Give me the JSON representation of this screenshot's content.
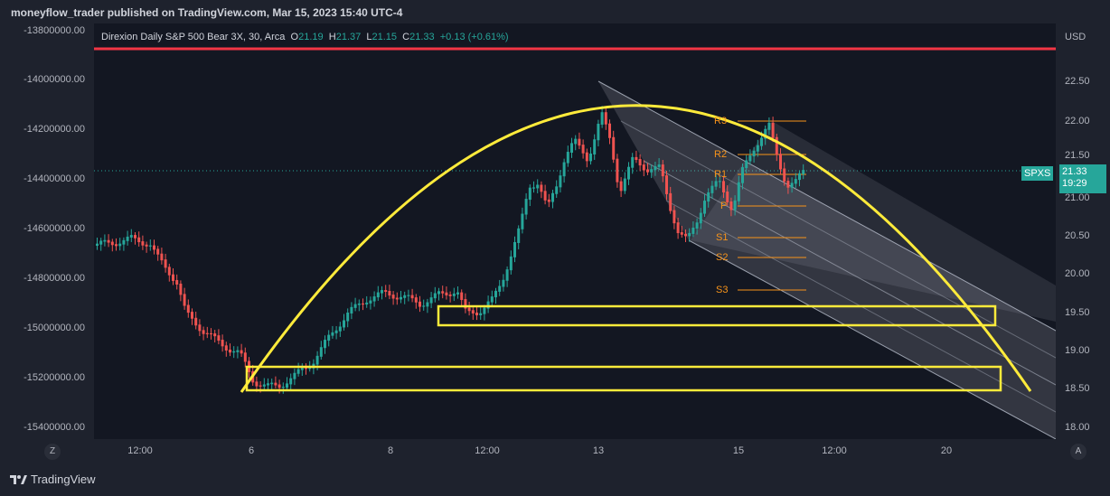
{
  "header": {
    "publisher_line": "moneyflow_trader published on TradingView.com, Mar 15, 2023 15:40 UTC-4"
  },
  "legend": {
    "symbol": "Direxion Daily S&P 500 Bear 3X, 30, Arca",
    "o_label": "O",
    "o": "21.19",
    "h_label": "H",
    "h": "21.37",
    "l_label": "L",
    "l": "21.15",
    "c_label": "C",
    "c": "21.33",
    "change": "+0.13 (+0.61%)"
  },
  "left_axis": [
    "-13800000.00",
    "-14000000.00",
    "-14200000.00",
    "-14400000.00",
    "-14600000.00",
    "-14800000.00",
    "-15000000.00",
    "-15200000.00",
    "-15400000.00"
  ],
  "right_axis": {
    "currency": "USD",
    "ticks": [
      "22.50",
      "22.00",
      "21.50",
      "21.00",
      "20.50",
      "20.00",
      "19.50",
      "19.00",
      "18.50",
      "18.00"
    ],
    "symbol_tag": "SPXS",
    "price_tag": "21.33",
    "countdown": "19:29"
  },
  "time_axis": [
    "12:00",
    "6",
    "8",
    "12:00",
    "13",
    "15",
    "12:00",
    "20"
  ],
  "pivots": [
    "R3",
    "R2",
    "R1",
    "P",
    "S1",
    "S2",
    "S3"
  ],
  "corner_buttons": {
    "left": "Z",
    "right": "A"
  },
  "footer": {
    "brand": "TradingView"
  },
  "colors": {
    "up": "#26a69a",
    "down": "#ef5350",
    "drawing": "#ffeb3b",
    "pivot": "#f7931a",
    "hline": "#f23645"
  }
}
